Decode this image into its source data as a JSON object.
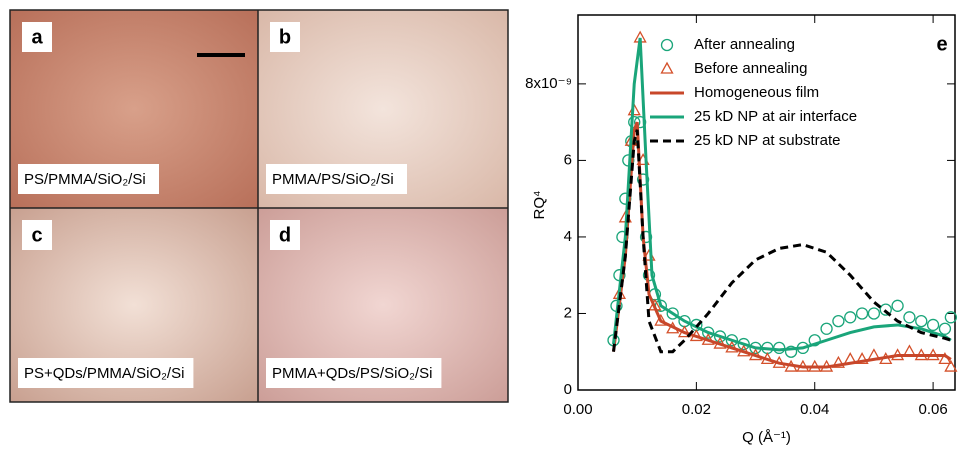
{
  "panels": [
    {
      "letter": "a",
      "caption": "PS/PMMA/SiO₂/Si"
    },
    {
      "letter": "b",
      "caption": "PMMA/PS/SiO₂/Si"
    },
    {
      "letter": "c",
      "caption": "PS+QDs/PMMA/SiO₂/Si"
    },
    {
      "letter": "d",
      "caption": "PMMA+QDs/PS/SiO₂/Si"
    }
  ],
  "chart_data": {
    "type": "line",
    "panel_letter": "e",
    "x_label": "Q (Å⁻¹)",
    "y_label": "RQ⁴",
    "xlim": [
      0,
      0.0637
    ],
    "ylim": [
      0,
      9.8
    ],
    "xticks": [
      {
        "value": 0,
        "label": "0.00"
      },
      {
        "value": 0.02,
        "label": "0.02"
      },
      {
        "value": 0.04,
        "label": "0.04"
      },
      {
        "value": 0.06,
        "label": "0.06"
      }
    ],
    "yticks": [
      0,
      2,
      4,
      6,
      {
        "value": 8,
        "label": "8x10⁻⁹"
      }
    ],
    "legend": "top-right",
    "series": [
      {
        "name": "After annealing",
        "color": "#1aa57a",
        "style": "circle",
        "x": [
          0.006,
          0.0065,
          0.007,
          0.0075,
          0.008,
          0.0085,
          0.009,
          0.0095,
          0.0105,
          0.011,
          0.0115,
          0.012,
          0.013,
          0.014,
          0.016,
          0.018,
          0.02,
          0.022,
          0.024,
          0.026,
          0.028,
          0.03,
          0.032,
          0.034,
          0.036,
          0.038,
          0.04,
          0.042,
          0.044,
          0.046,
          0.048,
          0.05,
          0.052,
          0.054,
          0.056,
          0.058,
          0.06,
          0.062,
          0.063
        ],
        "values": [
          1.3,
          2.2,
          3.0,
          4.0,
          5.0,
          6.0,
          6.5,
          7.0,
          7.0,
          5.5,
          4.0,
          3.0,
          2.5,
          2.2,
          2.0,
          1.8,
          1.7,
          1.5,
          1.4,
          1.3,
          1.2,
          1.1,
          1.1,
          1.1,
          1.0,
          1.1,
          1.3,
          1.6,
          1.8,
          1.9,
          2.0,
          2.0,
          2.1,
          2.2,
          1.9,
          1.8,
          1.7,
          1.6,
          1.9
        ]
      },
      {
        "name": "Before annealing",
        "color": "#d4502a",
        "style": "triangle",
        "x": [
          0.007,
          0.008,
          0.009,
          0.0095,
          0.0105,
          0.011,
          0.012,
          0.013,
          0.014,
          0.016,
          0.018,
          0.02,
          0.022,
          0.024,
          0.026,
          0.028,
          0.03,
          0.032,
          0.034,
          0.036,
          0.038,
          0.04,
          0.042,
          0.044,
          0.046,
          0.048,
          0.05,
          0.052,
          0.054,
          0.056,
          0.058,
          0.06,
          0.062,
          0.063
        ],
        "values": [
          2.5,
          4.5,
          6.5,
          7.3,
          9.2,
          6.0,
          3.5,
          2.2,
          1.8,
          1.6,
          1.5,
          1.4,
          1.3,
          1.2,
          1.1,
          1.0,
          0.9,
          0.8,
          0.7,
          0.6,
          0.6,
          0.6,
          0.6,
          0.7,
          0.8,
          0.8,
          0.9,
          0.8,
          0.9,
          1.0,
          0.9,
          0.9,
          0.8,
          0.6
        ]
      },
      {
        "name": "Homogeneous film",
        "color": "#c8472a",
        "style": "solid",
        "x": [
          0.006,
          0.008,
          0.0095,
          0.01,
          0.011,
          0.012,
          0.014,
          0.018,
          0.022,
          0.026,
          0.03,
          0.034,
          0.038,
          0.042,
          0.046,
          0.05,
          0.054,
          0.058,
          0.062,
          0.063
        ],
        "values": [
          1.0,
          3.5,
          6.8,
          7.0,
          4.0,
          2.5,
          1.8,
          1.5,
          1.3,
          1.1,
          0.9,
          0.7,
          0.6,
          0.6,
          0.7,
          0.8,
          0.9,
          0.9,
          0.9,
          0.8
        ]
      },
      {
        "name": "25 kD NP at air interface",
        "color": "#1aa57a",
        "style": "solid",
        "x": [
          0.006,
          0.008,
          0.0095,
          0.0105,
          0.0115,
          0.0125,
          0.014,
          0.018,
          0.022,
          0.026,
          0.03,
          0.034,
          0.038,
          0.042,
          0.046,
          0.05,
          0.054,
          0.058,
          0.062,
          0.063
        ],
        "values": [
          1.2,
          4.0,
          8.0,
          9.2,
          6.0,
          3.0,
          2.2,
          1.8,
          1.5,
          1.3,
          1.1,
          1.05,
          1.1,
          1.3,
          1.5,
          1.65,
          1.7,
          1.6,
          1.4,
          1.3
        ]
      },
      {
        "name": "25 kD NP at substrate",
        "color": "#000000",
        "style": "dashed",
        "x": [
          0.006,
          0.008,
          0.0095,
          0.01,
          0.011,
          0.012,
          0.014,
          0.016,
          0.018,
          0.022,
          0.026,
          0.03,
          0.034,
          0.038,
          0.042,
          0.046,
          0.05,
          0.054,
          0.058,
          0.062,
          0.063
        ],
        "values": [
          1.0,
          3.5,
          6.5,
          6.8,
          4.0,
          1.8,
          1.0,
          1.0,
          1.3,
          2.0,
          2.8,
          3.4,
          3.7,
          3.8,
          3.6,
          3.0,
          2.3,
          1.8,
          1.5,
          1.35,
          1.3
        ]
      }
    ]
  }
}
